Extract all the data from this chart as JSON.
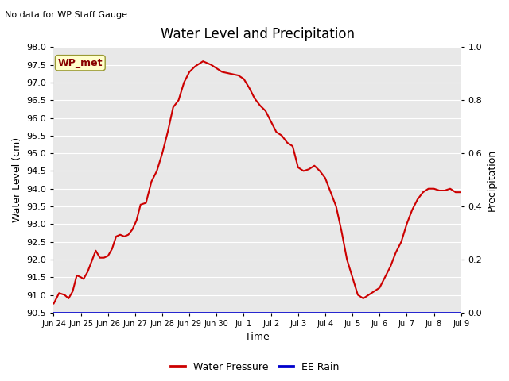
{
  "title": "Water Level and Precipitation",
  "subtitle": "No data for WP Staff Gauge",
  "ylabel_left": "Water Level (cm)",
  "ylabel_right": "Precipitation",
  "xlabel": "Time",
  "ylim_left": [
    90.5,
    98.0
  ],
  "ylim_right": [
    0.0,
    1.0
  ],
  "yticks_left": [
    90.5,
    91.0,
    91.5,
    92.0,
    92.5,
    93.0,
    93.5,
    94.0,
    94.5,
    95.0,
    95.5,
    96.0,
    96.5,
    97.0,
    97.5,
    98.0
  ],
  "yticks_right": [
    0.0,
    0.2,
    0.4,
    0.6,
    0.8,
    1.0
  ],
  "xtick_labels": [
    "Jun 24",
    "Jun 25",
    "Jun 26",
    "Jun 27",
    "Jun 28",
    "Jun 29",
    "Jun 30",
    "Jul 1",
    "Jul 2",
    "Jul 3",
    "Jul 4",
    "Jul 5",
    "Jul 6",
    "Jul 7",
    "Jul 8",
    "Jul 9"
  ],
  "background_color": "#e8e8e8",
  "line_color_water": "#cc0000",
  "line_color_rain": "#0000cc",
  "annotation_box_facecolor": "#ffffcc",
  "annotation_box_edgecolor": "#999933",
  "annotation_text_color": "#880000",
  "annotation_text": "WP_met",
  "legend_water": "Water Pressure",
  "legend_rain": "EE Rain",
  "water_x": [
    0,
    0.2,
    0.4,
    0.55,
    0.7,
    0.85,
    1.0,
    1.1,
    1.25,
    1.4,
    1.55,
    1.7,
    1.85,
    2.0,
    2.15,
    2.3,
    2.45,
    2.6,
    2.75,
    2.9,
    3.05,
    3.2,
    3.4,
    3.6,
    3.8,
    4.0,
    4.2,
    4.4,
    4.6,
    4.8,
    5.0,
    5.2,
    5.5,
    5.8,
    6.0,
    6.2,
    6.5,
    6.8,
    7.0,
    7.2,
    7.4,
    7.6,
    7.8,
    8.0,
    8.2,
    8.4,
    8.6,
    8.8,
    9.0,
    9.2,
    9.4,
    9.6,
    9.8,
    10.0,
    10.2,
    10.4,
    10.6,
    10.8,
    11.0,
    11.2,
    11.4,
    11.6,
    11.8,
    12.0,
    12.2,
    12.4,
    12.6,
    12.8,
    13.0,
    13.2,
    13.4,
    13.6,
    13.8,
    14.0,
    14.2,
    14.4,
    14.6,
    14.8,
    15.0
  ],
  "water_y": [
    90.75,
    91.05,
    91.0,
    90.9,
    91.1,
    91.55,
    91.5,
    91.45,
    91.65,
    91.95,
    92.25,
    92.05,
    92.05,
    92.1,
    92.3,
    92.65,
    92.7,
    92.65,
    92.7,
    92.85,
    93.1,
    93.55,
    93.6,
    94.2,
    94.5,
    95.0,
    95.6,
    96.3,
    96.5,
    97.0,
    97.3,
    97.45,
    97.6,
    97.5,
    97.4,
    97.3,
    97.25,
    97.2,
    97.1,
    96.85,
    96.55,
    96.35,
    96.2,
    95.9,
    95.6,
    95.5,
    95.3,
    95.2,
    94.6,
    94.5,
    94.55,
    94.65,
    94.5,
    94.3,
    93.9,
    93.5,
    92.8,
    92.0,
    91.5,
    91.0,
    90.9,
    91.0,
    91.1,
    91.2,
    91.5,
    91.8,
    92.2,
    92.5,
    93.0,
    93.4,
    93.7,
    93.9,
    94.0,
    94.0,
    93.95,
    93.95,
    94.0,
    93.9,
    93.9
  ]
}
